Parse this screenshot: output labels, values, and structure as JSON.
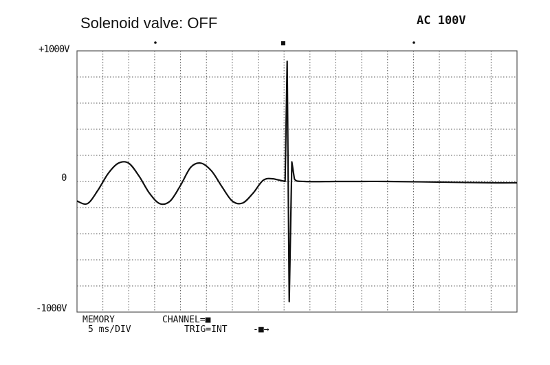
{
  "caption": "Solenoid valve: OFF",
  "supply_label": "AC 100V",
  "y_axis": {
    "top_label": "+1000V",
    "zero_label": "0",
    "bottom_label": "-1000V"
  },
  "status": {
    "mode": "MEMORY",
    "timebase": "5 ms/DIV",
    "channel": "CHANNEL=■",
    "trigger": "TRIG=INT",
    "trigger_marker": "-■→"
  },
  "chart_data": {
    "type": "line",
    "title": "Solenoid valve: OFF",
    "xlabel": "",
    "ylabel": "",
    "xlim": [
      0,
      85
    ],
    "ylim": [
      -1000,
      1000
    ],
    "grid": true,
    "x_divisions": 17,
    "y_divisions": 10,
    "series": [
      {
        "x": [
          0,
          2,
          4,
          6,
          8,
          10,
          12,
          14,
          16,
          18,
          20,
          22,
          24,
          26,
          28,
          30,
          32,
          34,
          36,
          38,
          40.2,
          40.6,
          41,
          41.5,
          42,
          44,
          50,
          55,
          60,
          70,
          80,
          85
        ],
        "y": [
          -150,
          -170,
          -70,
          60,
          140,
          140,
          40,
          -90,
          -170,
          -150,
          -30,
          110,
          140,
          80,
          -40,
          -150,
          -165,
          -90,
          10,
          20,
          0,
          920,
          -920,
          150,
          20,
          0,
          0,
          0,
          0,
          -5,
          -10,
          -10
        ]
      }
    ]
  },
  "colors": {
    "trace": "#111111",
    "grid": "#555555",
    "background": "#ffffff"
  }
}
